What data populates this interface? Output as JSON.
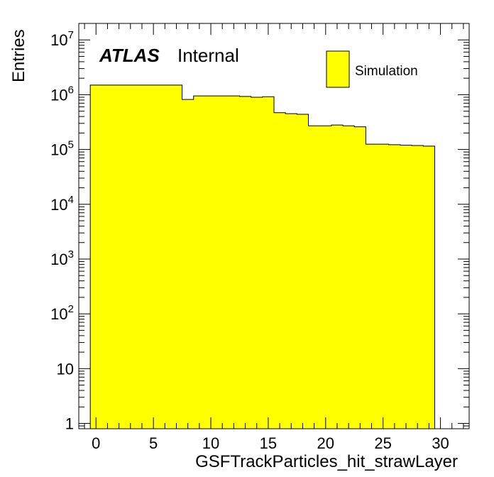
{
  "chart_data": {
    "type": "bar",
    "subtype": "histogram",
    "xlabel": "GSFTrackParticles_hit_strawLayer",
    "ylabel": "Entries",
    "x_scale": "linear",
    "y_scale": "log",
    "xlim": [
      -1.5,
      32.5
    ],
    "ylim": [
      0.8,
      20000000
    ],
    "x_ticks": [
      0,
      5,
      10,
      15,
      20,
      25,
      30
    ],
    "x_tick_labels": [
      "0",
      "5",
      "10",
      "15",
      "20",
      "25",
      "30"
    ],
    "y_ticks": [
      1,
      10,
      100,
      1000,
      10000,
      100000,
      1000000,
      10000000
    ],
    "y_tick_labels": [
      {
        "base": "1",
        "exp": ""
      },
      {
        "base": "10",
        "exp": ""
      },
      {
        "base": "10",
        "exp": "2"
      },
      {
        "base": "10",
        "exp": "3"
      },
      {
        "base": "10",
        "exp": "4"
      },
      {
        "base": "10",
        "exp": "5"
      },
      {
        "base": "10",
        "exp": "6"
      },
      {
        "base": "10",
        "exp": "7"
      }
    ],
    "legend_position": "top-right",
    "series": [
      {
        "name": "Simulation",
        "color": "#ffff00",
        "edge_color": "#000000",
        "bin_edges": [
          -0.5,
          0.5,
          1.5,
          2.5,
          3.5,
          4.5,
          5.5,
          6.5,
          7.5,
          8.5,
          9.5,
          10.5,
          11.5,
          12.5,
          13.5,
          14.5,
          15.5,
          16.5,
          17.5,
          18.5,
          19.5,
          20.5,
          21.5,
          22.5,
          23.5,
          24.5,
          25.5,
          26.5,
          27.5,
          28.5,
          29.5
        ],
        "values": [
          1500000,
          1500000,
          1500000,
          1500000,
          1500000,
          1500000,
          1500000,
          1500000,
          820000,
          950000,
          950000,
          950000,
          950000,
          930000,
          900000,
          920000,
          470000,
          450000,
          440000,
          270000,
          270000,
          280000,
          270000,
          260000,
          125000,
          125000,
          122000,
          120000,
          118000,
          115000
        ]
      }
    ]
  },
  "labels": {
    "atlas": "ATLAS",
    "status": "Internal"
  }
}
